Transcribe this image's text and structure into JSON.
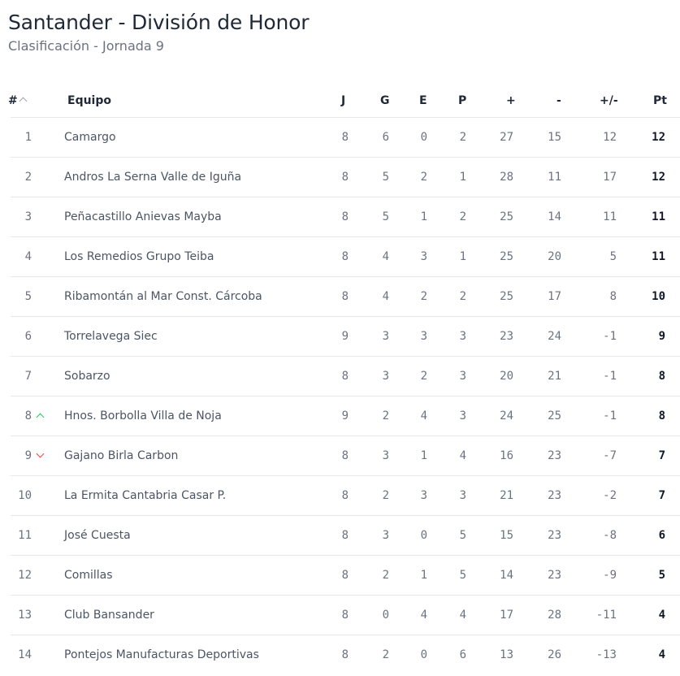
{
  "header": {
    "title": "Santander - División de Honor",
    "subtitle": "Clasificación - Jornada 9"
  },
  "columns": {
    "pos": "#",
    "team": "Equipo",
    "j": "J",
    "g": "G",
    "e": "E",
    "p": "P",
    "gf": "+",
    "ga": "-",
    "gd": "+/-",
    "pt": "Pt"
  },
  "colors": {
    "up": "#22c55e",
    "down": "#ef4444"
  },
  "rows": [
    {
      "pos": "1",
      "team": "Camargo",
      "j": "8",
      "g": "6",
      "e": "0",
      "p": "2",
      "gf": "27",
      "ga": "15",
      "gd": "12",
      "pt": "12",
      "trend": ""
    },
    {
      "pos": "2",
      "team": "Andros La Serna Valle de Iguña",
      "j": "8",
      "g": "5",
      "e": "2",
      "p": "1",
      "gf": "28",
      "ga": "11",
      "gd": "17",
      "pt": "12",
      "trend": ""
    },
    {
      "pos": "3",
      "team": "Peñacastillo Anievas Mayba",
      "j": "8",
      "g": "5",
      "e": "1",
      "p": "2",
      "gf": "25",
      "ga": "14",
      "gd": "11",
      "pt": "11",
      "trend": ""
    },
    {
      "pos": "4",
      "team": "Los Remedios Grupo Teiba",
      "j": "8",
      "g": "4",
      "e": "3",
      "p": "1",
      "gf": "25",
      "ga": "20",
      "gd": "5",
      "pt": "11",
      "trend": ""
    },
    {
      "pos": "5",
      "team": "Ribamontán al Mar Const. Cárcoba",
      "j": "8",
      "g": "4",
      "e": "2",
      "p": "2",
      "gf": "25",
      "ga": "17",
      "gd": "8",
      "pt": "10",
      "trend": ""
    },
    {
      "pos": "6",
      "team": "Torrelavega Siec",
      "j": "9",
      "g": "3",
      "e": "3",
      "p": "3",
      "gf": "23",
      "ga": "24",
      "gd": "-1",
      "pt": "9",
      "trend": ""
    },
    {
      "pos": "7",
      "team": "Sobarzo",
      "j": "8",
      "g": "3",
      "e": "2",
      "p": "3",
      "gf": "20",
      "ga": "21",
      "gd": "-1",
      "pt": "8",
      "trend": ""
    },
    {
      "pos": "8",
      "team": "Hnos. Borbolla Villa de Noja",
      "j": "9",
      "g": "2",
      "e": "4",
      "p": "3",
      "gf": "24",
      "ga": "25",
      "gd": "-1",
      "pt": "8",
      "trend": "up"
    },
    {
      "pos": "9",
      "team": "Gajano Birla Carbon",
      "j": "8",
      "g": "3",
      "e": "1",
      "p": "4",
      "gf": "16",
      "ga": "23",
      "gd": "-7",
      "pt": "7",
      "trend": "down"
    },
    {
      "pos": "10",
      "team": "La Ermita Cantabria Casar P.",
      "j": "8",
      "g": "2",
      "e": "3",
      "p": "3",
      "gf": "21",
      "ga": "23",
      "gd": "-2",
      "pt": "7",
      "trend": ""
    },
    {
      "pos": "11",
      "team": "José Cuesta",
      "j": "8",
      "g": "3",
      "e": "0",
      "p": "5",
      "gf": "15",
      "ga": "23",
      "gd": "-8",
      "pt": "6",
      "trend": ""
    },
    {
      "pos": "12",
      "team": "Comillas",
      "j": "8",
      "g": "2",
      "e": "1",
      "p": "5",
      "gf": "14",
      "ga": "23",
      "gd": "-9",
      "pt": "5",
      "trend": ""
    },
    {
      "pos": "13",
      "team": "Club Bansander",
      "j": "8",
      "g": "0",
      "e": "4",
      "p": "4",
      "gf": "17",
      "ga": "28",
      "gd": "-11",
      "pt": "4",
      "trend": ""
    },
    {
      "pos": "14",
      "team": "Pontejos Manufacturas Deportivas",
      "j": "8",
      "g": "2",
      "e": "0",
      "p": "6",
      "gf": "13",
      "ga": "26",
      "gd": "-13",
      "pt": "4",
      "trend": ""
    }
  ]
}
